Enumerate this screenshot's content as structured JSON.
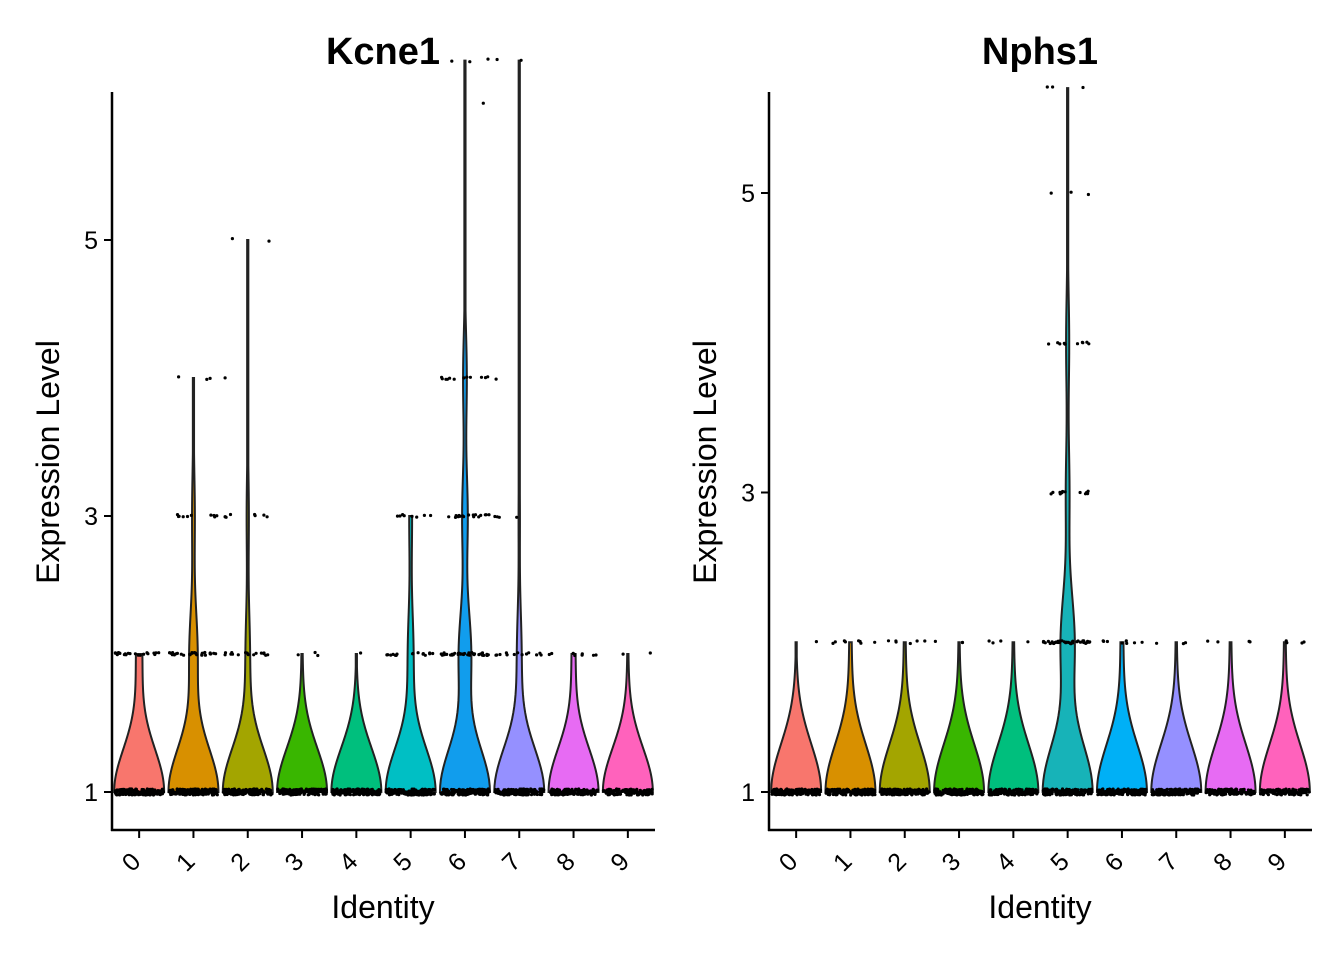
{
  "chart_data": [
    {
      "type": "violin",
      "title": "Kcne1",
      "xlabel": "Identity",
      "ylabel": "Expression Level",
      "categories": [
        "0",
        "1",
        "2",
        "3",
        "4",
        "5",
        "6",
        "7",
        "8",
        "9"
      ],
      "y_ticks": [
        "1",
        "3",
        "5"
      ],
      "y_tick_values": [
        1,
        3,
        5
      ],
      "ylim": [
        0.6,
        6.6
      ],
      "fill_colors": [
        "#F8766D",
        "#D89000",
        "#A3A500",
        "#39B600",
        "#00BF7D",
        "#00BFC4",
        "#119DED",
        "#9590FF",
        "#E76BF3",
        "#FF62BC"
      ],
      "values": {
        "0": [
          [
            1.0,
            180
          ],
          [
            2.0,
            22
          ]
        ],
        "1": [
          [
            1.0,
            180
          ],
          [
            2.0,
            30
          ],
          [
            3.0,
            10
          ],
          [
            4.0,
            3
          ]
        ],
        "2": [
          [
            1.0,
            180
          ],
          [
            2.0,
            16
          ],
          [
            3.0,
            8
          ],
          [
            4.0,
            1
          ],
          [
            5.0,
            2
          ]
        ],
        "3": [
          [
            1.0,
            160
          ],
          [
            2.0,
            3
          ]
        ],
        "4": [
          [
            1.0,
            160
          ],
          [
            2.0,
            1
          ]
        ],
        "5": [
          [
            1.0,
            140
          ],
          [
            2.0,
            16
          ],
          [
            3.0,
            8
          ]
        ],
        "6": [
          [
            1.0,
            160
          ],
          [
            2.0,
            40
          ],
          [
            3.0,
            18
          ],
          [
            4.0,
            12
          ],
          [
            6.0,
            1
          ],
          [
            6.3,
            3
          ]
        ],
        "7": [
          [
            1.0,
            150
          ],
          [
            2.0,
            14
          ],
          [
            3.0,
            4
          ],
          [
            4.0,
            1
          ],
          [
            6.3,
            2
          ]
        ],
        "8": [
          [
            1.0,
            120
          ],
          [
            2.0,
            9
          ]
        ],
        "9": [
          [
            1.0,
            110
          ],
          [
            2.0,
            2
          ]
        ]
      }
    },
    {
      "type": "violin",
      "title": "Nphs1",
      "xlabel": "Identity",
      "ylabel": "Expression Level",
      "categories": [
        "0",
        "1",
        "2",
        "3",
        "4",
        "5",
        "6",
        "7",
        "8",
        "9"
      ],
      "y_ticks": [
        "1",
        "3",
        "5"
      ],
      "y_tick_values": [
        1,
        3,
        5
      ],
      "ylim": [
        0.8,
        6.0
      ],
      "fill_colors": [
        "#F8766D",
        "#D89000",
        "#A3A500",
        "#39B600",
        "#00BF7D",
        "#17B3B8",
        "#00B0F6",
        "#9590FF",
        "#E76BF3",
        "#FF62BC"
      ],
      "values": {
        "0": [
          [
            1.0,
            180
          ],
          [
            2.0,
            1
          ]
        ],
        "1": [
          [
            1.0,
            180
          ],
          [
            2.0,
            8
          ]
        ],
        "2": [
          [
            1.0,
            180
          ],
          [
            2.0,
            6
          ]
        ],
        "3": [
          [
            1.0,
            160
          ],
          [
            2.0,
            3
          ]
        ],
        "4": [
          [
            1.0,
            160
          ],
          [
            2.0,
            4
          ]
        ],
        "5": [
          [
            1.0,
            160
          ],
          [
            2.0,
            45
          ],
          [
            3.0,
            12
          ],
          [
            4.0,
            10
          ],
          [
            5.0,
            3
          ],
          [
            5.7,
            3
          ]
        ],
        "6": [
          [
            1.0,
            150
          ],
          [
            2.0,
            8
          ]
        ],
        "7": [
          [
            1.0,
            150
          ],
          [
            2.0,
            3
          ]
        ],
        "8": [
          [
            1.0,
            140
          ],
          [
            2.0,
            4
          ]
        ],
        "9": [
          [
            1.0,
            130
          ],
          [
            2.0,
            4
          ]
        ]
      }
    }
  ]
}
